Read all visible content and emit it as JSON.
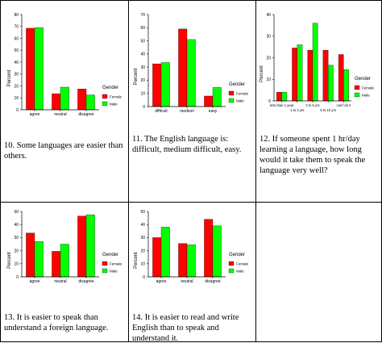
{
  "colors": {
    "female": "#ff0000",
    "male": "#00ff00",
    "axis": "#000000"
  },
  "charts": [
    {
      "caption": "10. Some languages are easier than others.",
      "chart_data": {
        "type": "bar",
        "title": "",
        "xlabel": "",
        "ylabel": "Percent",
        "categories": [
          "agree",
          "neutral",
          "disagree"
        ],
        "series": [
          {
            "name": "Female",
            "values": [
              68.5,
              13.5,
              17.5
            ]
          },
          {
            "name": "Male",
            "values": [
              69,
              19,
              12.5
            ]
          }
        ],
        "ylim": [
          0,
          80
        ],
        "yticks": [
          0,
          10,
          20,
          30,
          40,
          50,
          60,
          70,
          80
        ],
        "legend": {
          "title": "Gender",
          "position": "right"
        }
      }
    },
    {
      "caption": "11. The English language is: difficult, medium difficult, easy.",
      "chart_data": {
        "type": "bar",
        "title": "",
        "xlabel": "",
        "ylabel": "Percent",
        "categories": [
          "difficult",
          "medium",
          "easy"
        ],
        "series": [
          {
            "name": "Female",
            "values": [
              32.5,
              59,
              8
            ]
          },
          {
            "name": "Male",
            "values": [
              33.5,
              51,
              14.5
            ]
          }
        ],
        "ylim": [
          0,
          70
        ],
        "yticks": [
          0,
          10,
          20,
          30,
          40,
          50,
          60,
          70
        ],
        "legend": {
          "title": "Gender",
          "position": "right"
        }
      }
    },
    {
      "caption": "12. If someone spent 1 hr/day learning a language, how long would it take them to speak the language very well?",
      "chart_data": {
        "type": "bar",
        "title": "",
        "xlabel": "",
        "ylabel": "Percent",
        "categories": [
          "less than 1 year",
          "1 to 2 yrs",
          "2 to 5 yrs",
          "5 to 10 yrs",
          "can't do it"
        ],
        "category_labels_row1": [
          "less than 1 year",
          "",
          "2 to 5 yrs",
          "",
          "can't do it"
        ],
        "category_labels_row2": [
          "",
          "1 to 2 yrs",
          "",
          "5 to 10 yrs",
          ""
        ],
        "series": [
          {
            "name": "Female",
            "values": [
              4,
              24.5,
              23.5,
              23.5,
              21.5
            ]
          },
          {
            "name": "Male",
            "values": [
              4,
              26,
              36,
              16.5,
              14.5
            ]
          }
        ],
        "ylim": [
          0,
          40
        ],
        "yticks": [
          0,
          10,
          20,
          30,
          40
        ],
        "legend": {
          "title": "Gender",
          "position": "right"
        }
      }
    },
    {
      "caption": "13. It is easier to speak than understand a foreign language.",
      "chart_data": {
        "type": "bar",
        "title": "",
        "xlabel": "",
        "ylabel": "Percent",
        "categories": [
          "agree",
          "neutral",
          "disagree"
        ],
        "series": [
          {
            "name": "Female",
            "values": [
              33.5,
              19.5,
              46.5
            ]
          },
          {
            "name": "Male",
            "values": [
              27,
              25,
              47.5
            ]
          }
        ],
        "ylim": [
          0,
          50
        ],
        "yticks": [
          0,
          10,
          20,
          30,
          40,
          50
        ],
        "legend": {
          "title": "Gender",
          "position": "right"
        }
      }
    },
    {
      "caption": "14. It is easier to read and write English than to speak and understand it.",
      "chart_data": {
        "type": "bar",
        "title": "",
        "xlabel": "",
        "ylabel": "Percent",
        "categories": [
          "agree",
          "neutral",
          "disagree"
        ],
        "series": [
          {
            "name": "Female",
            "values": [
              30,
              25.5,
              44
            ]
          },
          {
            "name": "Male",
            "values": [
              38,
              24.5,
              39
            ]
          }
        ],
        "ylim": [
          0,
          50
        ],
        "yticks": [
          0,
          10,
          20,
          30,
          40,
          50
        ],
        "legend": {
          "title": "Gender",
          "position": "right"
        }
      }
    }
  ]
}
